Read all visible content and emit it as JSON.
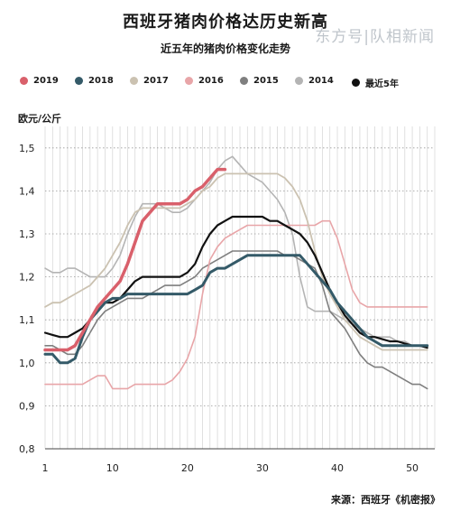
{
  "chart_data": {
    "type": "line",
    "title": "西班牙猪肉价格达历史新高",
    "subtitle": "近五年的猪肉价格变化走势",
    "ylabel": "欧元/公斤",
    "xlabel": "",
    "x_ticks": [
      1,
      10,
      20,
      30,
      40,
      50
    ],
    "y_ticks": [
      "0,8",
      "0,9",
      "1,0",
      "1,1",
      "1,2",
      "1,3",
      "1,4",
      "1,5"
    ],
    "ylim": [
      0.8,
      1.55
    ],
    "xlim": [
      1,
      53
    ],
    "grid": true,
    "legend_position": "top",
    "source": "来源：西班牙《机密报》",
    "watermark": "东方号|队相新闻",
    "series": [
      {
        "name": "2019",
        "color": "#d9606b",
        "width": 3.5,
        "x": [
          1,
          2,
          3,
          4,
          5,
          6,
          7,
          8,
          9,
          10,
          11,
          12,
          13,
          14,
          15,
          16,
          17,
          18,
          19,
          20,
          21,
          22,
          23,
          24,
          25
        ],
        "y": [
          1.03,
          1.03,
          1.03,
          1.03,
          1.04,
          1.07,
          1.1,
          1.13,
          1.15,
          1.17,
          1.19,
          1.23,
          1.28,
          1.33,
          1.35,
          1.37,
          1.37,
          1.37,
          1.37,
          1.38,
          1.4,
          1.41,
          1.43,
          1.45,
          1.45
        ]
      },
      {
        "name": "2018",
        "color": "#345a68",
        "width": 3,
        "x": [
          1,
          2,
          3,
          4,
          5,
          6,
          7,
          8,
          9,
          10,
          11,
          12,
          13,
          14,
          15,
          16,
          17,
          18,
          19,
          20,
          21,
          22,
          23,
          24,
          25,
          26,
          27,
          28,
          29,
          30,
          31,
          32,
          33,
          34,
          35,
          36,
          37,
          38,
          39,
          40,
          41,
          42,
          43,
          44,
          45,
          46,
          47,
          48,
          49,
          50,
          51,
          52
        ],
        "y": [
          1.02,
          1.02,
          1.0,
          1.0,
          1.01,
          1.06,
          1.1,
          1.12,
          1.14,
          1.15,
          1.15,
          1.16,
          1.16,
          1.16,
          1.16,
          1.16,
          1.16,
          1.16,
          1.16,
          1.16,
          1.17,
          1.18,
          1.21,
          1.22,
          1.22,
          1.23,
          1.24,
          1.25,
          1.25,
          1.25,
          1.25,
          1.25,
          1.25,
          1.25,
          1.25,
          1.23,
          1.21,
          1.19,
          1.17,
          1.14,
          1.12,
          1.1,
          1.08,
          1.06,
          1.05,
          1.04,
          1.04,
          1.04,
          1.04,
          1.04,
          1.04,
          1.04
        ]
      },
      {
        "name": "2017",
        "color": "#cbc2b1",
        "width": 1.8,
        "x": [
          1,
          2,
          3,
          4,
          5,
          6,
          7,
          8,
          9,
          10,
          11,
          12,
          13,
          14,
          15,
          16,
          17,
          18,
          19,
          20,
          21,
          22,
          23,
          24,
          25,
          26,
          27,
          28,
          29,
          30,
          31,
          32,
          33,
          34,
          35,
          36,
          37,
          38,
          39,
          40,
          41,
          42,
          43,
          44,
          45,
          46,
          47,
          48,
          49,
          50,
          51,
          52
        ],
        "y": [
          1.13,
          1.14,
          1.14,
          1.15,
          1.16,
          1.17,
          1.18,
          1.2,
          1.22,
          1.25,
          1.28,
          1.32,
          1.35,
          1.36,
          1.36,
          1.36,
          1.36,
          1.36,
          1.36,
          1.37,
          1.38,
          1.4,
          1.41,
          1.43,
          1.44,
          1.44,
          1.44,
          1.44,
          1.44,
          1.44,
          1.44,
          1.44,
          1.43,
          1.41,
          1.38,
          1.33,
          1.26,
          1.2,
          1.16,
          1.13,
          1.1,
          1.08,
          1.06,
          1.05,
          1.04,
          1.03,
          1.03,
          1.03,
          1.03,
          1.03,
          1.03,
          1.03
        ]
      },
      {
        "name": "2016",
        "color": "#e8a5a8",
        "width": 1.6,
        "x": [
          1,
          2,
          3,
          4,
          5,
          6,
          7,
          8,
          9,
          10,
          11,
          12,
          13,
          14,
          15,
          16,
          17,
          18,
          19,
          20,
          21,
          22,
          23,
          24,
          25,
          26,
          27,
          28,
          29,
          30,
          31,
          32,
          33,
          34,
          35,
          36,
          37,
          38,
          39,
          40,
          41,
          42,
          43,
          44,
          45,
          46,
          47,
          48,
          49,
          50,
          51,
          52
        ],
        "y": [
          0.95,
          0.95,
          0.95,
          0.95,
          0.95,
          0.95,
          0.96,
          0.97,
          0.97,
          0.94,
          0.94,
          0.94,
          0.95,
          0.95,
          0.95,
          0.95,
          0.95,
          0.96,
          0.98,
          1.01,
          1.06,
          1.16,
          1.24,
          1.27,
          1.29,
          1.3,
          1.31,
          1.32,
          1.32,
          1.32,
          1.32,
          1.32,
          1.32,
          1.32,
          1.32,
          1.32,
          1.32,
          1.33,
          1.33,
          1.29,
          1.23,
          1.17,
          1.14,
          1.13,
          1.13,
          1.13,
          1.13,
          1.13,
          1.13,
          1.13,
          1.13,
          1.13
        ]
      },
      {
        "name": "2015",
        "color": "#7f7f7f",
        "width": 1.6,
        "x": [
          1,
          2,
          3,
          4,
          5,
          6,
          7,
          8,
          9,
          10,
          11,
          12,
          13,
          14,
          15,
          16,
          17,
          18,
          19,
          20,
          21,
          22,
          23,
          24,
          25,
          26,
          27,
          28,
          29,
          30,
          31,
          32,
          33,
          34,
          35,
          36,
          37,
          38,
          39,
          40,
          41,
          42,
          43,
          44,
          45,
          46,
          47,
          48,
          49,
          50,
          51,
          52
        ],
        "y": [
          1.04,
          1.04,
          1.03,
          1.02,
          1.02,
          1.04,
          1.07,
          1.1,
          1.12,
          1.13,
          1.14,
          1.15,
          1.15,
          1.15,
          1.16,
          1.17,
          1.18,
          1.18,
          1.18,
          1.19,
          1.2,
          1.22,
          1.23,
          1.24,
          1.25,
          1.26,
          1.26,
          1.26,
          1.26,
          1.26,
          1.26,
          1.26,
          1.25,
          1.25,
          1.24,
          1.23,
          1.22,
          1.18,
          1.12,
          1.1,
          1.08,
          1.05,
          1.02,
          1.0,
          0.99,
          0.99,
          0.98,
          0.97,
          0.96,
          0.95,
          0.95,
          0.94
        ]
      },
      {
        "name": "2014",
        "color": "#b4b4b4",
        "width": 1.6,
        "x": [
          1,
          2,
          3,
          4,
          5,
          6,
          7,
          8,
          9,
          10,
          11,
          12,
          13,
          14,
          15,
          16,
          17,
          18,
          19,
          20,
          21,
          22,
          23,
          24,
          25,
          26,
          27,
          28,
          29,
          30,
          31,
          32,
          33,
          34,
          35,
          36,
          37,
          38,
          39,
          40,
          41,
          42,
          43,
          44,
          45,
          46,
          47,
          48,
          49,
          50,
          51,
          52
        ],
        "y": [
          1.22,
          1.21,
          1.21,
          1.22,
          1.22,
          1.21,
          1.2,
          1.2,
          1.2,
          1.22,
          1.25,
          1.3,
          1.34,
          1.37,
          1.37,
          1.37,
          1.36,
          1.35,
          1.35,
          1.36,
          1.38,
          1.4,
          1.42,
          1.45,
          1.47,
          1.48,
          1.46,
          1.44,
          1.43,
          1.42,
          1.4,
          1.38,
          1.35,
          1.3,
          1.2,
          1.13,
          1.12,
          1.12,
          1.12,
          1.11,
          1.1,
          1.09,
          1.08,
          1.07,
          1.06,
          1.06,
          1.06,
          1.05,
          1.05,
          1.04,
          1.04,
          1.04
        ]
      },
      {
        "name": "最近5年",
        "color": "#111111",
        "width": 2.2,
        "x": [
          1,
          2,
          3,
          4,
          5,
          6,
          7,
          8,
          9,
          10,
          11,
          12,
          13,
          14,
          15,
          16,
          17,
          18,
          19,
          20,
          21,
          22,
          23,
          24,
          25,
          26,
          27,
          28,
          29,
          30,
          31,
          32,
          33,
          34,
          35,
          36,
          37,
          38,
          39,
          40,
          41,
          42,
          43,
          44,
          45,
          46,
          47,
          48,
          49,
          50,
          51,
          52
        ],
        "y": [
          1.07,
          1.065,
          1.06,
          1.06,
          1.07,
          1.08,
          1.1,
          1.12,
          1.14,
          1.14,
          1.15,
          1.17,
          1.19,
          1.2,
          1.2,
          1.2,
          1.2,
          1.2,
          1.2,
          1.21,
          1.23,
          1.27,
          1.3,
          1.32,
          1.33,
          1.34,
          1.34,
          1.34,
          1.34,
          1.34,
          1.33,
          1.33,
          1.32,
          1.31,
          1.3,
          1.28,
          1.25,
          1.21,
          1.17,
          1.14,
          1.11,
          1.09,
          1.07,
          1.06,
          1.06,
          1.055,
          1.05,
          1.05,
          1.045,
          1.04,
          1.04,
          1.035
        ]
      }
    ]
  }
}
